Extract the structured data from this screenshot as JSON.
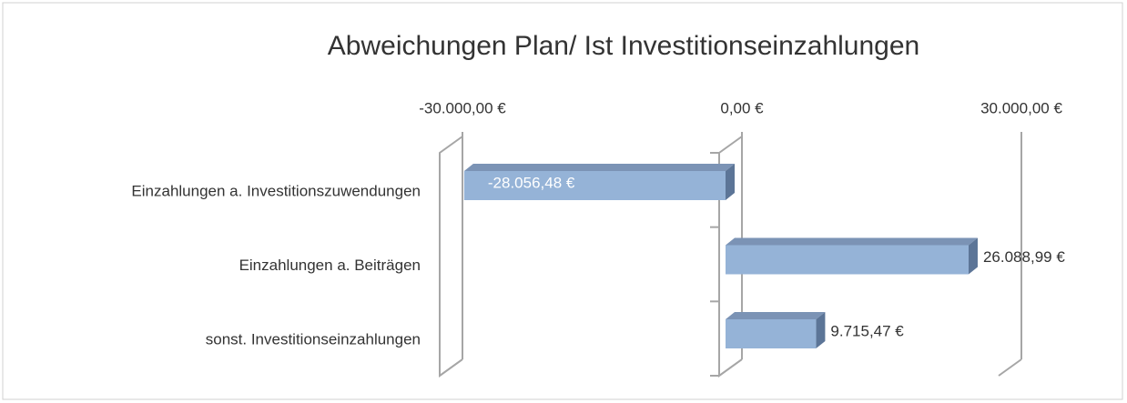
{
  "chart_data": {
    "type": "bar",
    "orientation": "horizontal",
    "title": "Abweichungen Plan/ Ist Investitionseinzahlungen",
    "categories": [
      "Einzahlungen a. Investitionszuwendungen",
      "Einzahlungen a. Beiträgen",
      "sonst. Investitionseinzahlungen"
    ],
    "values": [
      -28056.48,
      26088.99,
      9715.47
    ],
    "value_labels": [
      "-28.056,48 €",
      "26.088,99 €",
      "9.715,47 €"
    ],
    "color": "#95b3d7",
    "xlim": [
      -30000,
      30000
    ],
    "xticks": [
      {
        "value": -30000,
        "label": "-30.000,00 €"
      },
      {
        "value": 0,
        "label": "0,00 €"
      },
      {
        "value": 30000,
        "label": "30.000,00 €"
      }
    ],
    "grid": true
  }
}
